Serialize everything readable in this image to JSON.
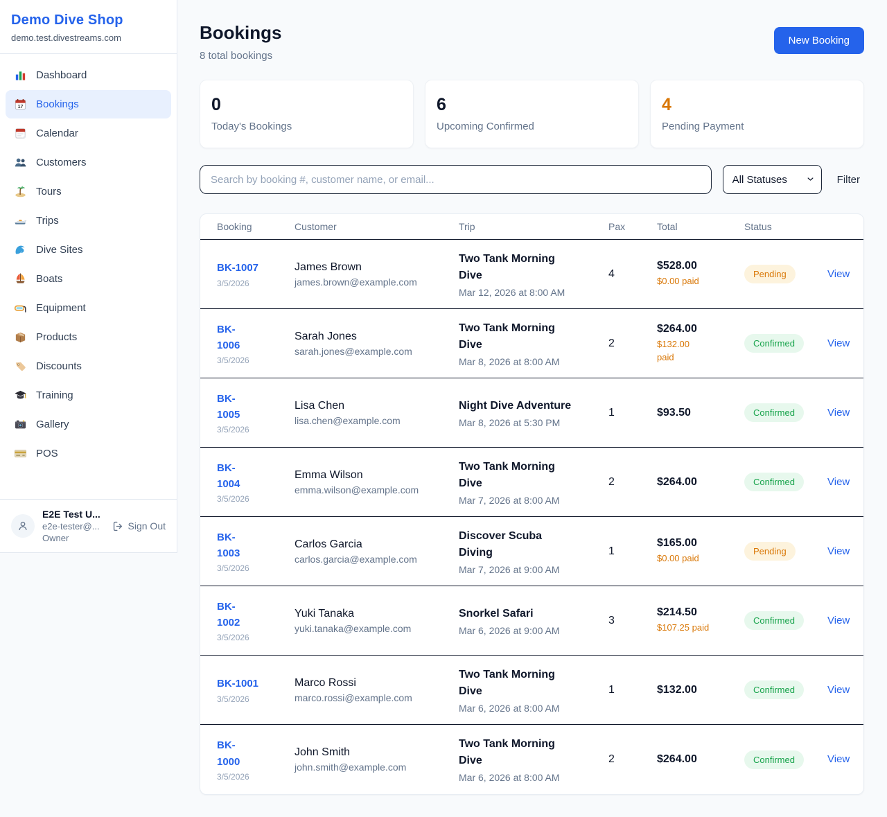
{
  "colors": {
    "accent": "#2563eb",
    "pending_text": "#d97706",
    "pending_bg": "#fdf3dd",
    "confirmed_text": "#16a34a",
    "confirmed_bg": "#e7f8ed",
    "page_bg": "#f8fafc"
  },
  "sidebar": {
    "brand": {
      "name": "Demo Dive Shop",
      "domain": "demo.test.divestreams.com"
    },
    "nav": [
      {
        "label": "Dashboard",
        "icon": "bar-chart-icon",
        "active": false
      },
      {
        "label": "Bookings",
        "icon": "calendar-date-icon",
        "active": true
      },
      {
        "label": "Calendar",
        "icon": "tear-calendar-icon",
        "active": false
      },
      {
        "label": "Customers",
        "icon": "people-icon",
        "active": false
      },
      {
        "label": "Tours",
        "icon": "island-icon",
        "active": false
      },
      {
        "label": "Trips",
        "icon": "speedboat-icon",
        "active": false
      },
      {
        "label": "Dive Sites",
        "icon": "wave-icon",
        "active": false
      },
      {
        "label": "Boats",
        "icon": "sailboat-icon",
        "active": false
      },
      {
        "label": "Equipment",
        "icon": "diving-mask-icon",
        "active": false
      },
      {
        "label": "Products",
        "icon": "package-icon",
        "active": false
      },
      {
        "label": "Discounts",
        "icon": "tag-icon",
        "active": false
      },
      {
        "label": "Training",
        "icon": "graduation-cap-icon",
        "active": false
      },
      {
        "label": "Gallery",
        "icon": "camera-icon",
        "active": false
      },
      {
        "label": "POS",
        "icon": "credit-card-icon",
        "active": false
      }
    ],
    "user": {
      "name": "E2E Test U...",
      "email": "e2e-tester@...",
      "role": "Owner",
      "sign_out_label": "Sign Out"
    }
  },
  "header": {
    "title": "Bookings",
    "subtitle": "8 total bookings",
    "new_booking_label": "New Booking"
  },
  "stats": [
    {
      "value": "0",
      "label": "Today's Bookings",
      "accent": false
    },
    {
      "value": "6",
      "label": "Upcoming Confirmed",
      "accent": false
    },
    {
      "value": "4",
      "label": "Pending Payment",
      "accent": true
    }
  ],
  "filters": {
    "search_placeholder": "Search by booking #, customer name, or email...",
    "status_selected": "All Statuses",
    "filter_label": "Filter"
  },
  "table": {
    "columns": [
      "Booking",
      "Customer",
      "Trip",
      "Pax",
      "Total",
      "Status"
    ],
    "view_label": "View",
    "rows": [
      {
        "id": "BK-1007",
        "id_two_line": false,
        "date": "3/5/2026",
        "customer": "James Brown",
        "email": "james.brown@example.com",
        "trip": "Two Tank Morning Dive",
        "trip_two_line": true,
        "trip_datetime": "Mar 12, 2026 at 8:00 AM",
        "pax": "4",
        "total": "$528.00",
        "paid": "$0.00 paid",
        "paid_two_line": false,
        "status": "Pending"
      },
      {
        "id": "BK-1006",
        "id_two_line": true,
        "date": "3/5/2026",
        "customer": "Sarah Jones",
        "email": "sarah.jones@example.com",
        "trip": "Two Tank Morning Dive",
        "trip_two_line": true,
        "trip_datetime": "Mar 8, 2026 at 8:00 AM",
        "pax": "2",
        "total": "$264.00",
        "paid": "$132.00 paid",
        "paid_two_line": true,
        "status": "Confirmed"
      },
      {
        "id": "BK-1005",
        "id_two_line": true,
        "date": "3/5/2026",
        "customer": "Lisa Chen",
        "email": "lisa.chen@example.com",
        "trip": "Night Dive Adventure",
        "trip_two_line": false,
        "trip_datetime": "Mar 8, 2026 at 5:30 PM",
        "pax": "1",
        "total": "$93.50",
        "paid": "",
        "paid_two_line": false,
        "status": "Confirmed"
      },
      {
        "id": "BK-1004",
        "id_two_line": true,
        "date": "3/5/2026",
        "customer": "Emma Wilson",
        "email": "emma.wilson@example.com",
        "trip": "Two Tank Morning Dive",
        "trip_two_line": true,
        "trip_datetime": "Mar 7, 2026 at 8:00 AM",
        "pax": "2",
        "total": "$264.00",
        "paid": "",
        "paid_two_line": false,
        "status": "Confirmed"
      },
      {
        "id": "BK-1003",
        "id_two_line": true,
        "date": "3/5/2026",
        "customer": "Carlos Garcia",
        "email": "carlos.garcia@example.com",
        "trip": "Discover Scuba Diving",
        "trip_two_line": true,
        "trip_datetime": "Mar 7, 2026 at 9:00 AM",
        "pax": "1",
        "total": "$165.00",
        "paid": "$0.00 paid",
        "paid_two_line": false,
        "status": "Pending"
      },
      {
        "id": "BK-1002",
        "id_two_line": true,
        "date": "3/5/2026",
        "customer": "Yuki Tanaka",
        "email": "yuki.tanaka@example.com",
        "trip": "Snorkel Safari",
        "trip_two_line": false,
        "trip_datetime": "Mar 6, 2026 at 9:00 AM",
        "pax": "3",
        "total": "$214.50",
        "paid": "$107.25 paid",
        "paid_two_line": false,
        "status": "Confirmed"
      },
      {
        "id": "BK-1001",
        "id_two_line": false,
        "date": "3/5/2026",
        "customer": "Marco Rossi",
        "email": "marco.rossi@example.com",
        "trip": "Two Tank Morning Dive",
        "trip_two_line": true,
        "trip_datetime": "Mar 6, 2026 at 8:00 AM",
        "pax": "1",
        "total": "$132.00",
        "paid": "",
        "paid_two_line": false,
        "status": "Confirmed"
      },
      {
        "id": "BK-1000",
        "id_two_line": true,
        "date": "3/5/2026",
        "customer": "John Smith",
        "email": "john.smith@example.com",
        "trip": "Two Tank Morning Dive",
        "trip_two_line": true,
        "trip_datetime": "Mar 6, 2026 at 8:00 AM",
        "pax": "2",
        "total": "$264.00",
        "paid": "",
        "paid_two_line": false,
        "status": "Confirmed"
      }
    ]
  }
}
